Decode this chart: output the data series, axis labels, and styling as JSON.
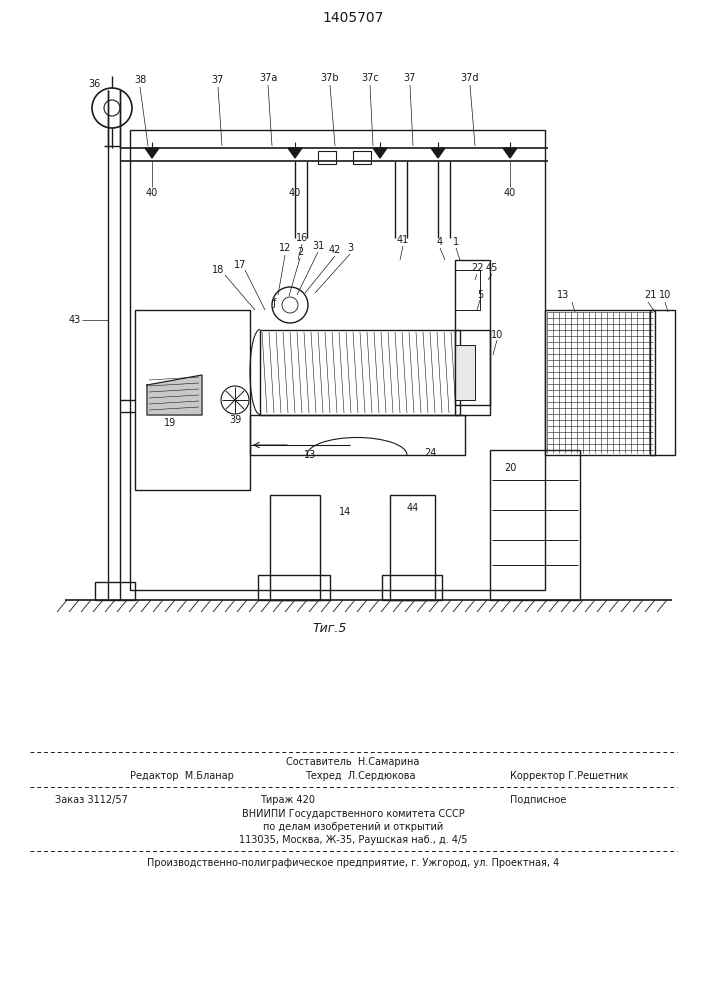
{
  "title": "1405707",
  "fig_label": "Τиг.5",
  "bg_color": "#ffffff",
  "line_color": "#1a1a1a",
  "footer": {
    "composit": "Составитель  Н.Самарина",
    "editor": "Редактор  М.Бланар",
    "tekhred": "Техред  Л.Сердюкова",
    "corrector": "Корректор Г.Решетник",
    "zakaz": "Заказ 3112/57",
    "tirazh": "Тираж 420",
    "podpis": "Подписное",
    "vniip1": "ВНИИПИ Государственного комитета СССР",
    "vniip2": "по делам изобретений и открытий",
    "vniip3": "113035, Москва, Ж-35, Раушская наб., д. 4/5",
    "proizv": "Производственно-полиграфическое предприятие, г. Ужгород, ул. Проектная, 4"
  }
}
